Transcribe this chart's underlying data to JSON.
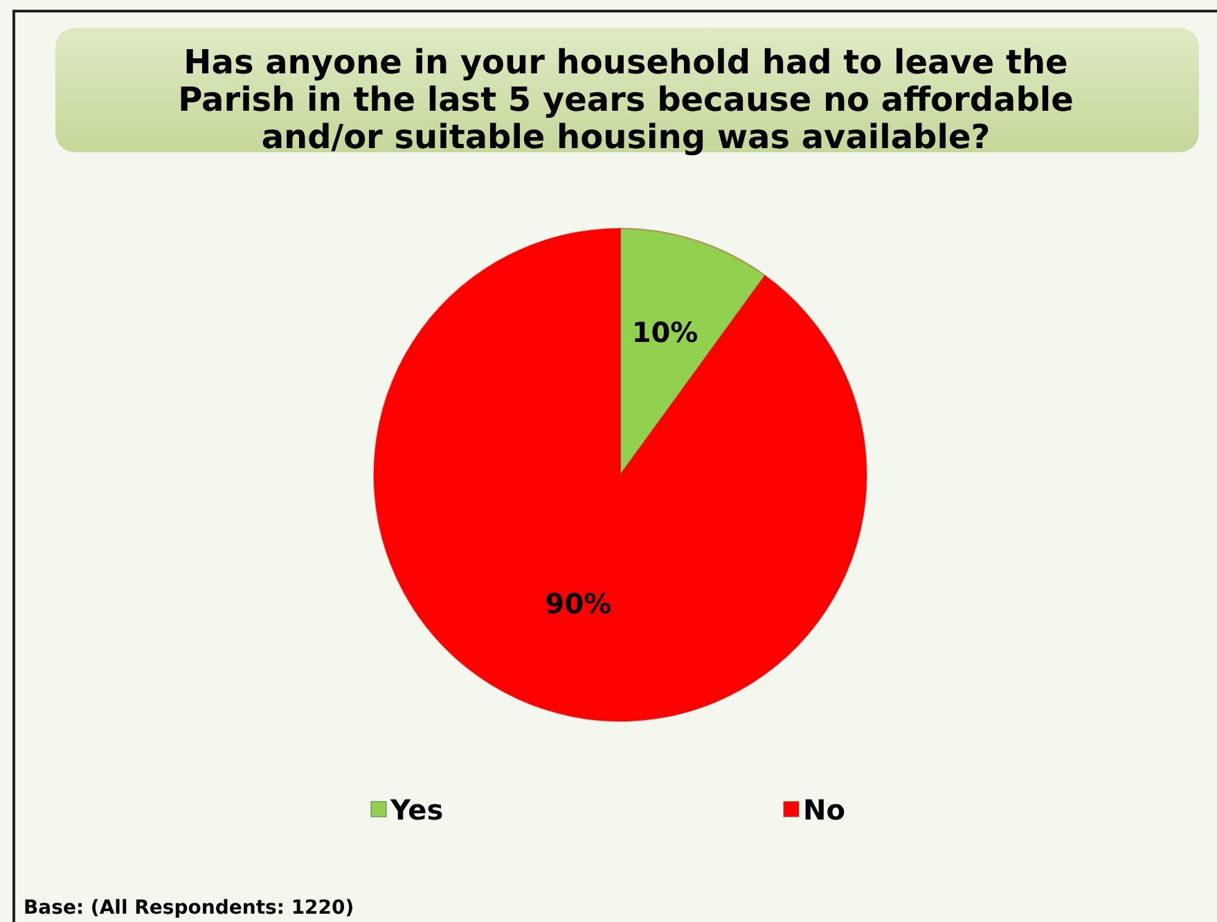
{
  "chart_data": {
    "type": "pie",
    "title": "Has anyone in your household had to leave the\nParish in the last 5 years because no affordable\nand/or suitable housing was available?",
    "categories": [
      "Yes",
      "No"
    ],
    "values": [
      10,
      90
    ],
    "colors": [
      "#92d050",
      "#ff0000"
    ],
    "value_labels": [
      "10%",
      "90%"
    ],
    "legend": "bottom",
    "annotations": [
      "Base: (All Respondents: 1220)"
    ]
  }
}
